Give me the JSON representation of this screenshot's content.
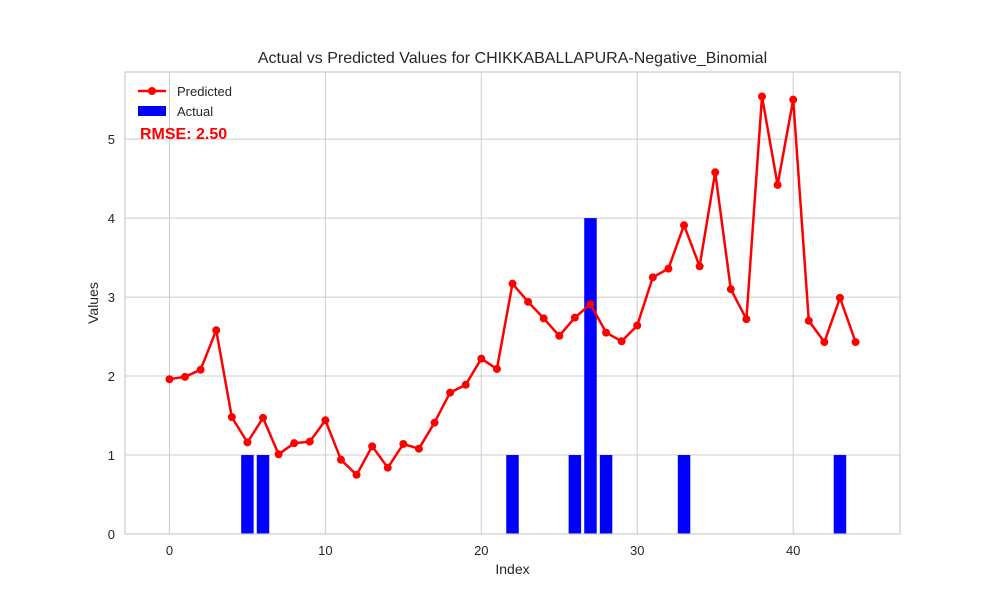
{
  "chart_data": {
    "type": "bar+line",
    "title": "Actual vs Predicted Values for CHIKKABALLAPURA-Negative_Binomial",
    "xlabel": "Index",
    "ylabel": "Values",
    "xlim": [
      -2.85,
      46.85
    ],
    "ylim": [
      0,
      5.85
    ],
    "xticks": [
      0,
      10,
      20,
      30,
      40
    ],
    "yticks": [
      0,
      1,
      2,
      3,
      4,
      5
    ],
    "grid": true,
    "legend_position": "top-left",
    "annotation": "RMSE: 2.50",
    "series": [
      {
        "name": "Predicted",
        "kind": "line",
        "color": "#ff0000",
        "marker": "circle",
        "x": [
          0,
          1,
          2,
          3,
          4,
          5,
          6,
          7,
          8,
          9,
          10,
          11,
          12,
          13,
          14,
          15,
          16,
          17,
          18,
          19,
          20,
          21,
          22,
          23,
          24,
          25,
          26,
          27,
          28,
          29,
          30,
          31,
          32,
          33,
          34,
          35,
          36,
          37,
          38,
          39,
          40,
          41,
          42,
          43,
          44
        ],
        "values": [
          1.96,
          1.99,
          2.08,
          2.58,
          1.48,
          1.16,
          1.47,
          1.01,
          1.15,
          1.17,
          1.44,
          0.94,
          0.75,
          1.11,
          0.84,
          1.14,
          1.08,
          1.41,
          1.79,
          1.89,
          2.22,
          2.09,
          3.17,
          2.94,
          2.73,
          2.51,
          2.74,
          2.91,
          2.55,
          2.44,
          2.64,
          3.25,
          3.36,
          3.91,
          3.39,
          4.58,
          3.1,
          2.72,
          5.54,
          4.42,
          5.5,
          2.7,
          2.43,
          2.99,
          2.43
        ]
      },
      {
        "name": "Actual",
        "kind": "bar",
        "color": "#0000ff",
        "x": [
          0,
          1,
          2,
          3,
          4,
          5,
          6,
          7,
          8,
          9,
          10,
          11,
          12,
          13,
          14,
          15,
          16,
          17,
          18,
          19,
          20,
          21,
          22,
          23,
          24,
          25,
          26,
          27,
          28,
          29,
          30,
          31,
          32,
          33,
          34,
          35,
          36,
          37,
          38,
          39,
          40,
          41,
          42,
          43,
          44
        ],
        "values": [
          0,
          0,
          0,
          0,
          0,
          1,
          1,
          0,
          0,
          0,
          0,
          0,
          0,
          0,
          0,
          0,
          0,
          0,
          0,
          0,
          0,
          0,
          1,
          0,
          0,
          0,
          1,
          4,
          1,
          0,
          0,
          0,
          0,
          1,
          0,
          0,
          0,
          0,
          0,
          0,
          0,
          0,
          0,
          1,
          0
        ]
      }
    ]
  }
}
